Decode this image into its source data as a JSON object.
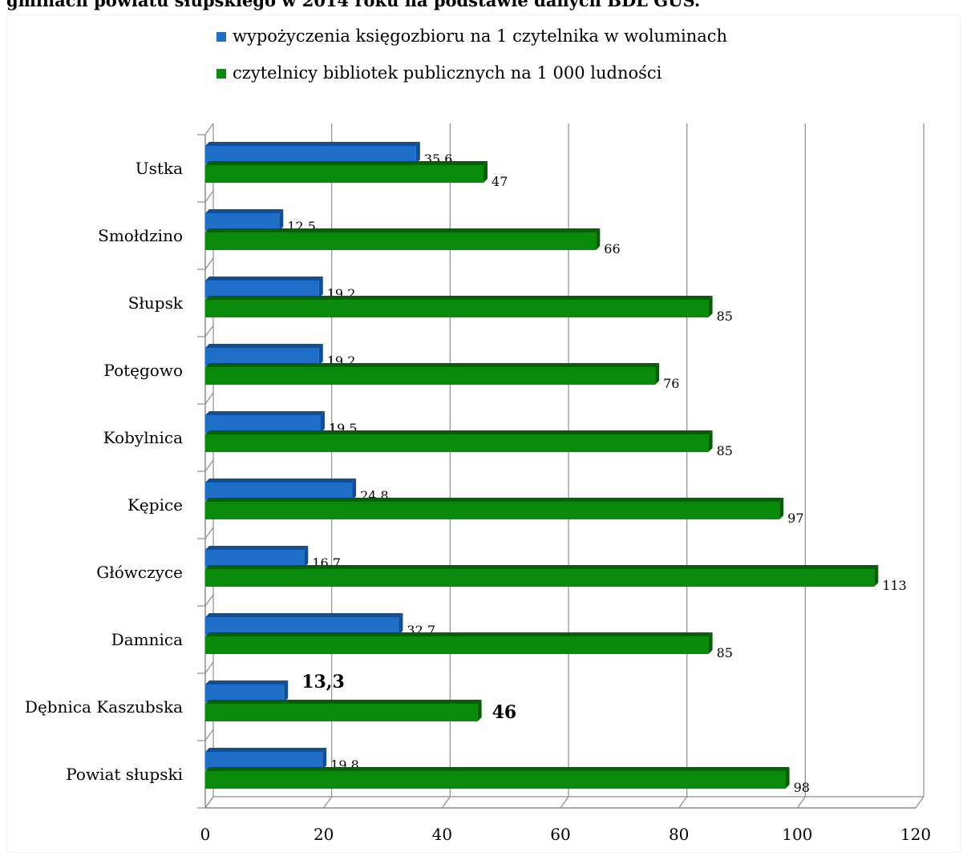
{
  "caption": "gminach powiatu słupskiego w 2014 roku na podstawie danych BDL GUS.",
  "colors": {
    "series1": "#1f6fc9",
    "series1_dark": "#0f4f99",
    "series2": "#0a8a0a",
    "series2_dark": "#046004",
    "grid": "#8c8c8c",
    "background": "#ffffff"
  },
  "chart_data": {
    "type": "bar",
    "orientation": "horizontal",
    "categories": [
      "Ustka",
      "Smołdzino",
      "Słupsk",
      "Potęgowo",
      "Kobylnica",
      "Kępice",
      "Główczyce",
      "Damnica",
      "Dębnica Kaszubska",
      "Powiat słupski"
    ],
    "series": [
      {
        "name": "wypożyczenia księgozbioru na 1 czytelnika w woluminach",
        "values": [
          35.6,
          12.5,
          19.2,
          19.2,
          19.5,
          24.8,
          16.7,
          32.7,
          13.3,
          19.8
        ],
        "labels": [
          "35,6",
          "12,5",
          "19,2",
          "19,2",
          "19,5",
          "24,8",
          "16,7",
          "32,7",
          "13,3",
          "19,8"
        ]
      },
      {
        "name": "czytelnicy bibliotek publicznych na 1 000 ludności",
        "values": [
          47,
          66,
          85,
          76,
          85,
          97,
          113,
          85,
          46,
          98
        ],
        "labels": [
          "47",
          "66",
          "85",
          "76",
          "85",
          "97",
          "113",
          "85",
          "46",
          "98"
        ]
      }
    ],
    "xlim": [
      0,
      120
    ],
    "xticks": [
      "0",
      "20",
      "40",
      "60",
      "80",
      "100",
      "120"
    ],
    "grid": true,
    "legend": "top-center",
    "emphasized_category": "Dębnica Kaszubska"
  }
}
